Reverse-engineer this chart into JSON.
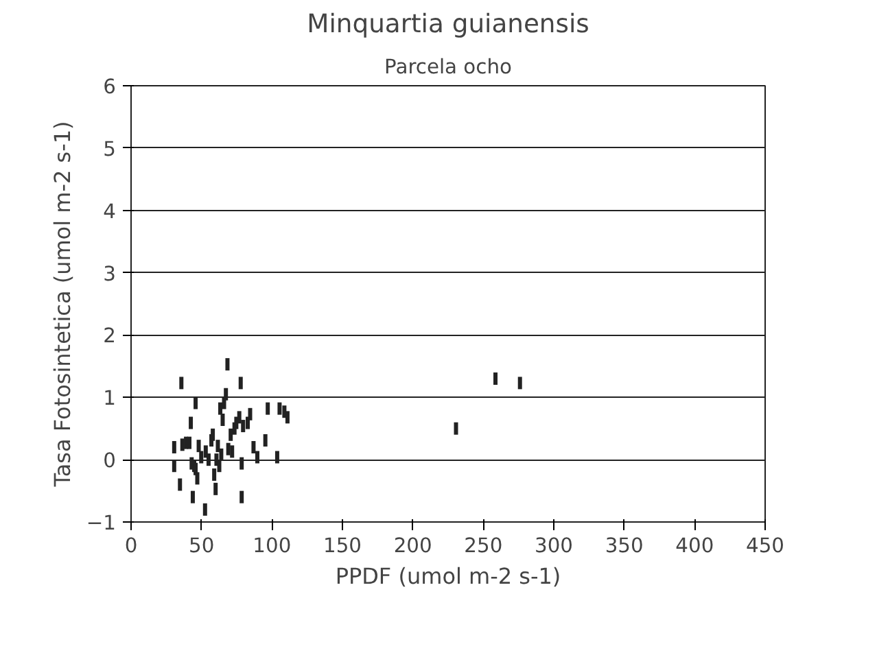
{
  "chart_data": {
    "type": "scatter",
    "title": "Minquartia guianensis",
    "subtitle": "Parcela ocho",
    "xlabel": "PPDF (umol m-2 s-1)",
    "ylabel": "Tasa Fotosintetica (umol m-2 s-1)",
    "x": [
      30.6,
      30.6,
      35.7,
      34.7,
      36.4,
      39,
      41.4,
      42.4,
      43,
      44.8,
      43.8,
      45.8,
      45.8,
      47,
      48,
      49.8,
      52.5,
      53,
      55,
      57,
      58,
      59,
      60,
      60.6,
      61.6,
      62.6,
      63.3,
      64,
      65,
      66,
      67.3,
      68.4,
      69,
      70.7,
      71.7,
      73.4,
      74.7,
      76.8,
      77.8,
      78.5,
      78.5,
      79.5,
      82.8,
      84.5,
      86.9,
      89.6,
      95.3,
      97,
      103.7,
      105.4,
      108.8,
      111,
      230.6,
      258.6,
      276
    ],
    "series": [
      {
        "color": "#222222",
        "values": [
          0.2,
          -0.1,
          1.23,
          -0.4,
          0.24,
          0.27,
          0.27,
          0.59,
          -0.06,
          -0.1,
          -0.6,
          0.91,
          -0.15,
          -0.3,
          0.22,
          0.04,
          -0.8,
          0.13,
          0,
          0.31,
          0.4,
          -0.24,
          -0.47,
          0,
          0.22,
          -0.1,
          0.82,
          0.08,
          0.64,
          0.91,
          1.05,
          1.53,
          0.17,
          0.4,
          0.13,
          0.5,
          0.59,
          0.68,
          1.23,
          -0.06,
          -0.6,
          0.54,
          0.59,
          0.73,
          0.2,
          0.04,
          0.31,
          0.82,
          0.04,
          0.82,
          0.77,
          0.68,
          0.5,
          1.3,
          1.23
        ]
      }
    ],
    "xlim": [
      0,
      450
    ],
    "xticks": [
      0,
      50,
      100,
      150,
      200,
      250,
      300,
      350,
      400,
      450
    ],
    "ylim": [
      -1,
      6
    ],
    "yticks": [
      {
        "value": -1,
        "label": "−1"
      },
      0,
      1,
      2,
      3,
      4,
      5,
      6
    ],
    "grid": "y"
  }
}
